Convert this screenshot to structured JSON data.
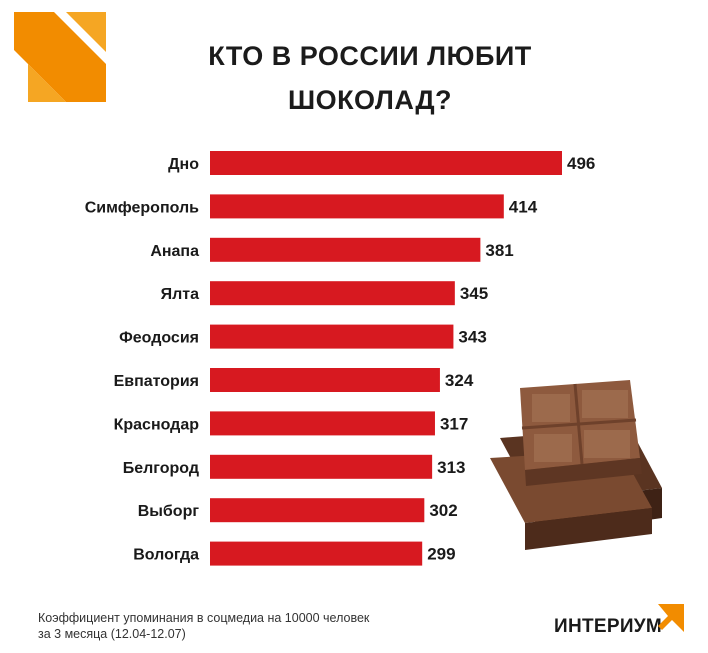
{
  "title_line1": "КТО В РОССИИ ЛЮБИТ",
  "title_line2": "ШОКОЛАД?",
  "footnote_line1": "Коэффициент упоминания в соцмедиа на 10000 человек",
  "footnote_line2": "за 3 месяца (12.04-12.07)",
  "brand": "ИНТЕРИУМ",
  "icons": {
    "corner": "orange-arrow-logo-icon",
    "brand": "orange-arrow-mark-icon",
    "illustration": "chocolate-bar-icon"
  },
  "colors": {
    "bar": "#d71920",
    "accent": "#f28c00"
  },
  "chart_data": {
    "type": "bar",
    "orientation": "horizontal",
    "title": "КТО В РОССИИ ЛЮБИТ ШОКОЛАД?",
    "categories": [
      "Дно",
      "Симферополь",
      "Анапа",
      "Ялта",
      "Феодосия",
      "Евпатория",
      "Краснодар",
      "Белгород",
      "Выборг",
      "Вологда"
    ],
    "values": [
      496,
      414,
      381,
      345,
      343,
      324,
      317,
      313,
      302,
      299
    ],
    "data_labels": [
      "496",
      "414",
      "381",
      "345",
      "343",
      "324",
      "317",
      "313",
      "302",
      "299"
    ],
    "xlim": [
      0,
      496
    ],
    "grid": false,
    "legend": "none"
  }
}
